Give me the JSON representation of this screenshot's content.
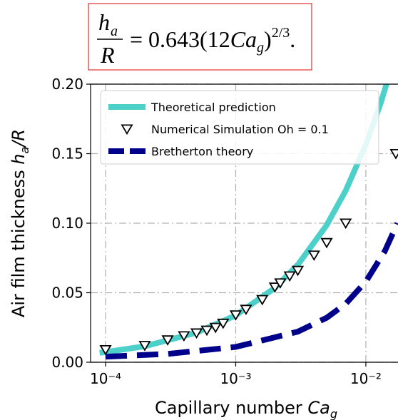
{
  "equation": {
    "lhs_num": "h",
    "lhs_num_sub": "a",
    "lhs_den": "R",
    "rhs": "= 0.643(12",
    "rhs_var": "Ca",
    "rhs_var_sub": "g",
    "rhs_close": ")",
    "rhs_exp": "2/3",
    "end": "."
  },
  "chart_data": {
    "type": "line",
    "xlabel": {
      "text": "Capillary number ",
      "var": "Ca",
      "sub": "g"
    },
    "ylabel": {
      "text": "Air film thickness ",
      "var": "h",
      "sub": "a",
      "rest": "/R"
    },
    "xscale": "log",
    "grid": true,
    "legend": "upper left",
    "xlim": [
      7.67e-05,
      0.01766
    ],
    "ylim": [
      0,
      0.2
    ],
    "xticks": [
      {
        "value": 0.0001,
        "label": "10⁻⁴"
      },
      {
        "value": 0.001,
        "label": "10⁻³"
      },
      {
        "value": 0.01,
        "label": "10⁻²"
      }
    ],
    "yticks": [
      {
        "value": 0,
        "label": "0.00"
      },
      {
        "value": 0.05,
        "label": "0.05"
      },
      {
        "value": 0.1,
        "label": "0.10"
      },
      {
        "value": 0.15,
        "label": "0.15"
      },
      {
        "value": 0.2,
        "label": "0.20"
      }
    ],
    "series": [
      {
        "name": "Theoretical prediction",
        "style": "line",
        "color": "#4dd0c9",
        "x": [
          9e-05,
          0.0001,
          0.0002,
          0.0005,
          0.001,
          0.002,
          0.003,
          0.005,
          0.007,
          0.01,
          0.013,
          0.016
        ],
        "values": [
          0.0068,
          0.0073,
          0.0115,
          0.0213,
          0.0337,
          0.0535,
          0.0701,
          0.0986,
          0.1234,
          0.1565,
          0.1864,
          0.2141
        ]
      },
      {
        "name": "Numerical Simulation Oh = 0.1",
        "style": "marker",
        "color": "#000000",
        "x": [
          0.0001,
          0.0002,
          0.0003,
          0.0004,
          0.0005,
          0.0006,
          0.0007,
          0.0008,
          0.001,
          0.0012,
          0.0016,
          0.002,
          0.0022,
          0.0026,
          0.003,
          0.004,
          0.005,
          0.007,
          0.017
        ],
        "values": [
          0.009,
          0.012,
          0.016,
          0.019,
          0.021,
          0.023,
          0.025,
          0.028,
          0.034,
          0.038,
          0.045,
          0.054,
          0.057,
          0.062,
          0.066,
          0.077,
          0.086,
          0.1,
          0.15
        ]
      },
      {
        "name": "Bretherton theory",
        "style": "dashed",
        "color": "#00008b",
        "x": [
          0.0001,
          0.0003,
          0.001,
          0.003,
          0.005,
          0.007,
          0.01,
          0.014,
          0.0175
        ],
        "values": [
          0.004,
          0.006,
          0.011,
          0.022,
          0.032,
          0.042,
          0.058,
          0.08,
          0.1
        ]
      }
    ]
  }
}
